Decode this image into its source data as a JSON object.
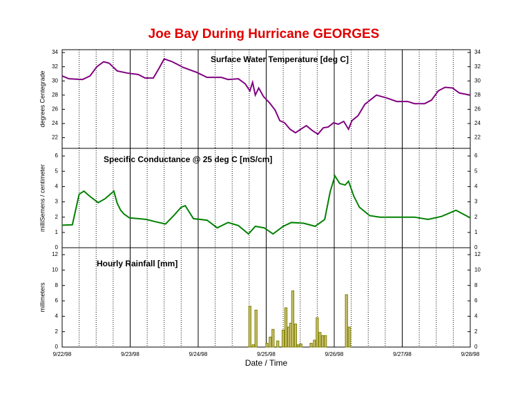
{
  "title": "Joe Bay During Hurricane GEORGES",
  "chart_data": [
    {
      "type": "line",
      "title": "Surface Water Temperature [deg C]",
      "ylabel": "degrees Centegrade",
      "color": "#800080",
      "ylim": [
        20.5,
        34.4
      ],
      "yticks": [
        22,
        24,
        26,
        28,
        30,
        32,
        34
      ],
      "x": [
        0,
        0.1,
        0.3,
        0.41,
        0.51,
        0.61,
        0.69,
        0.81,
        0.96,
        1.12,
        1.22,
        1.34,
        1.42,
        1.5,
        1.62,
        1.78,
        1.98,
        2.13,
        2.34,
        2.44,
        2.59,
        2.69,
        2.76,
        2.8,
        2.84,
        2.89,
        2.96,
        3.05,
        3.13,
        3.2,
        3.27,
        3.35,
        3.43,
        3.51,
        3.59,
        3.68,
        3.76,
        3.84,
        3.91,
        3.99,
        4.06,
        4.14,
        4.21,
        4.26,
        4.35,
        4.45,
        4.62,
        4.77,
        4.92,
        5.08,
        5.18,
        5.33,
        5.43,
        5.53,
        5.63,
        5.74,
        5.84,
        6.0
      ],
      "values": [
        30.7,
        30.3,
        30.2,
        30.7,
        32.0,
        32.7,
        32.5,
        31.4,
        31.1,
        30.9,
        30.4,
        30.4,
        31.7,
        33.1,
        32.7,
        31.9,
        31.2,
        30.5,
        30.5,
        30.2,
        30.3,
        29.6,
        28.6,
        29.8,
        28.0,
        29.0,
        27.8,
        26.9,
        25.9,
        24.4,
        24.1,
        23.2,
        22.7,
        23.2,
        23.7,
        23.0,
        22.5,
        23.4,
        23.5,
        24.1,
        23.9,
        24.3,
        23.2,
        24.4,
        25.1,
        26.7,
        28.0,
        27.6,
        27.1,
        27.1,
        26.8,
        26.8,
        27.3,
        28.6,
        29.1,
        29.0,
        28.3,
        28.0
      ]
    },
    {
      "type": "line",
      "title": "Specific Conductance @ 25 deg C [mS/cm]",
      "ylabel": "milliSemens / centimeter",
      "color": "#008000",
      "ylim": [
        0,
        6.5
      ],
      "yticks": [
        0,
        1,
        2,
        3,
        4,
        5,
        6
      ],
      "x": [
        0,
        0.15,
        0.25,
        0.32,
        0.41,
        0.53,
        0.63,
        0.76,
        0.81,
        0.86,
        0.91,
        0.99,
        1.12,
        1.24,
        1.37,
        1.52,
        1.64,
        1.75,
        1.81,
        1.93,
        2.13,
        2.28,
        2.44,
        2.59,
        2.74,
        2.84,
        2.97,
        3.1,
        3.25,
        3.37,
        3.55,
        3.72,
        3.86,
        3.94,
        4.01,
        4.08,
        4.16,
        4.21,
        4.29,
        4.37,
        4.52,
        4.67,
        4.87,
        5.18,
        5.38,
        5.58,
        5.79,
        6.0
      ],
      "values": [
        1.47,
        1.5,
        3.5,
        3.7,
        3.35,
        2.95,
        3.2,
        3.7,
        2.9,
        2.45,
        2.2,
        1.95,
        1.9,
        1.85,
        1.7,
        1.55,
        2.1,
        2.65,
        2.75,
        1.9,
        1.8,
        1.3,
        1.65,
        1.45,
        0.9,
        1.4,
        1.3,
        0.9,
        1.4,
        1.65,
        1.6,
        1.4,
        1.85,
        3.65,
        4.7,
        4.2,
        4.1,
        4.35,
        3.35,
        2.65,
        2.1,
        2.0,
        2.0,
        2.0,
        1.85,
        2.05,
        2.45,
        1.95
      ]
    },
    {
      "type": "bar",
      "title": "Hourly Rainfall [mm]",
      "ylabel": "millimeters",
      "xlabel": "Date / Time",
      "color": "#c8c070",
      "ylim": [
        0,
        12.9
      ],
      "yticks": [
        0,
        2,
        4,
        6,
        8,
        10,
        12
      ],
      "xlim": [
        0,
        6
      ],
      "xticks": [
        {
          "value": 0,
          "label": "9/22/98"
        },
        {
          "value": 1,
          "label": "9/23/98"
        },
        {
          "value": 2,
          "label": "9/24/98"
        },
        {
          "value": 3,
          "label": "9/25/98"
        },
        {
          "value": 4,
          "label": "9/26/98"
        },
        {
          "value": 5,
          "label": "9/27/98"
        },
        {
          "value": 6,
          "label": "9/28/98"
        }
      ],
      "x": [
        2.76,
        2.81,
        2.85,
        3.01,
        3.06,
        3.1,
        3.17,
        3.25,
        3.29,
        3.33,
        3.36,
        3.39,
        3.43,
        3.47,
        3.51,
        3.66,
        3.71,
        3.75,
        3.79,
        3.83,
        3.87,
        4.18,
        4.22
      ],
      "values": [
        5.3,
        0.3,
        4.8,
        0.5,
        1.3,
        2.3,
        0.8,
        2.2,
        5.1,
        2.6,
        3.1,
        7.3,
        3.0,
        0.3,
        0.4,
        0.5,
        0.9,
        3.8,
        1.9,
        1.5,
        1.5,
        6.8,
        2.6
      ]
    }
  ]
}
